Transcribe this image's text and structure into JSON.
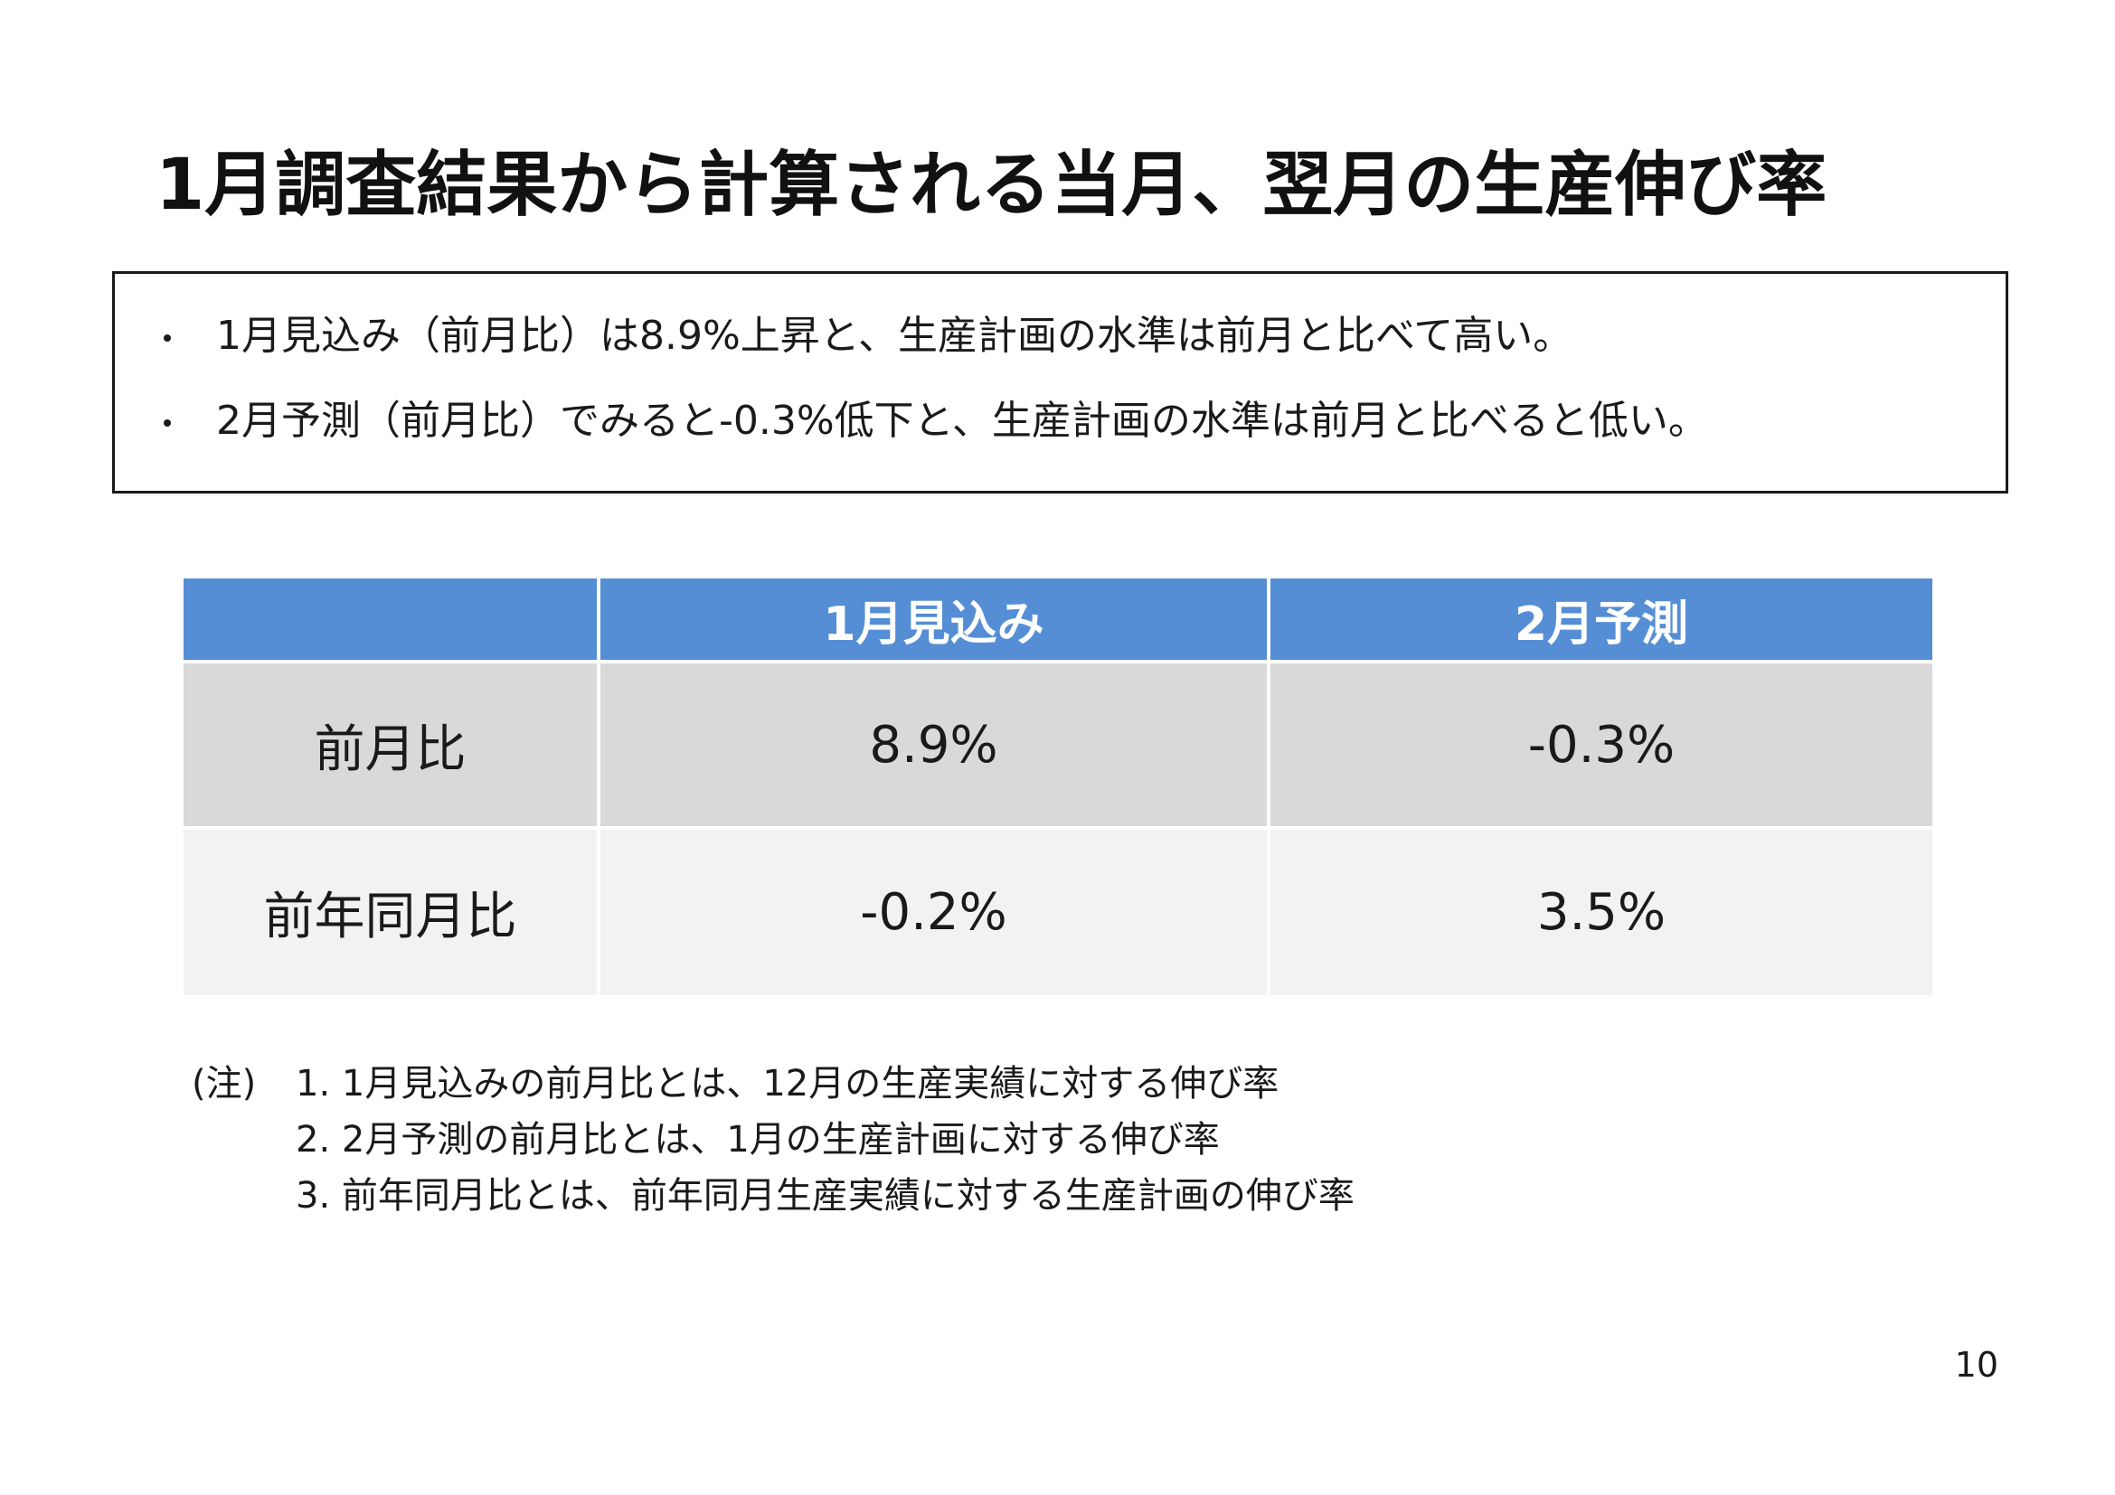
{
  "title": "1月調査結果から計算される当月、翌月の生産伸び率",
  "summary": {
    "bullets": [
      "1月見込み（前月比）は8.9%上昇と、生産計画の水準は前月と比べて高い。",
      "2月予測（前月比）でみると-0.3%低下と、生産計画の水準は前月と比べると低い。"
    ]
  },
  "table": {
    "headers": [
      "",
      "1月見込み",
      "2月予測"
    ],
    "rows": [
      {
        "label": "前月比",
        "values": [
          "8.9%",
          "-0.3%"
        ]
      },
      {
        "label": "前年同月比",
        "values": [
          "-0.2%",
          "3.5%"
        ]
      }
    ],
    "colors": {
      "header_bg": "#558ed5",
      "row1_bg": "#d9d9d9",
      "row2_bg": "#f2f2f2"
    }
  },
  "notes": {
    "prefix": "(注)",
    "items": [
      "1.  1月見込みの前月比とは、12月の生産実績に対する伸び率",
      "2.  2月予測の前月比とは、1月の生産計画に対する伸び率",
      "3.  前年同月比とは、前年同月生産実績に対する生産計画の伸び率"
    ]
  },
  "page_number": "10"
}
